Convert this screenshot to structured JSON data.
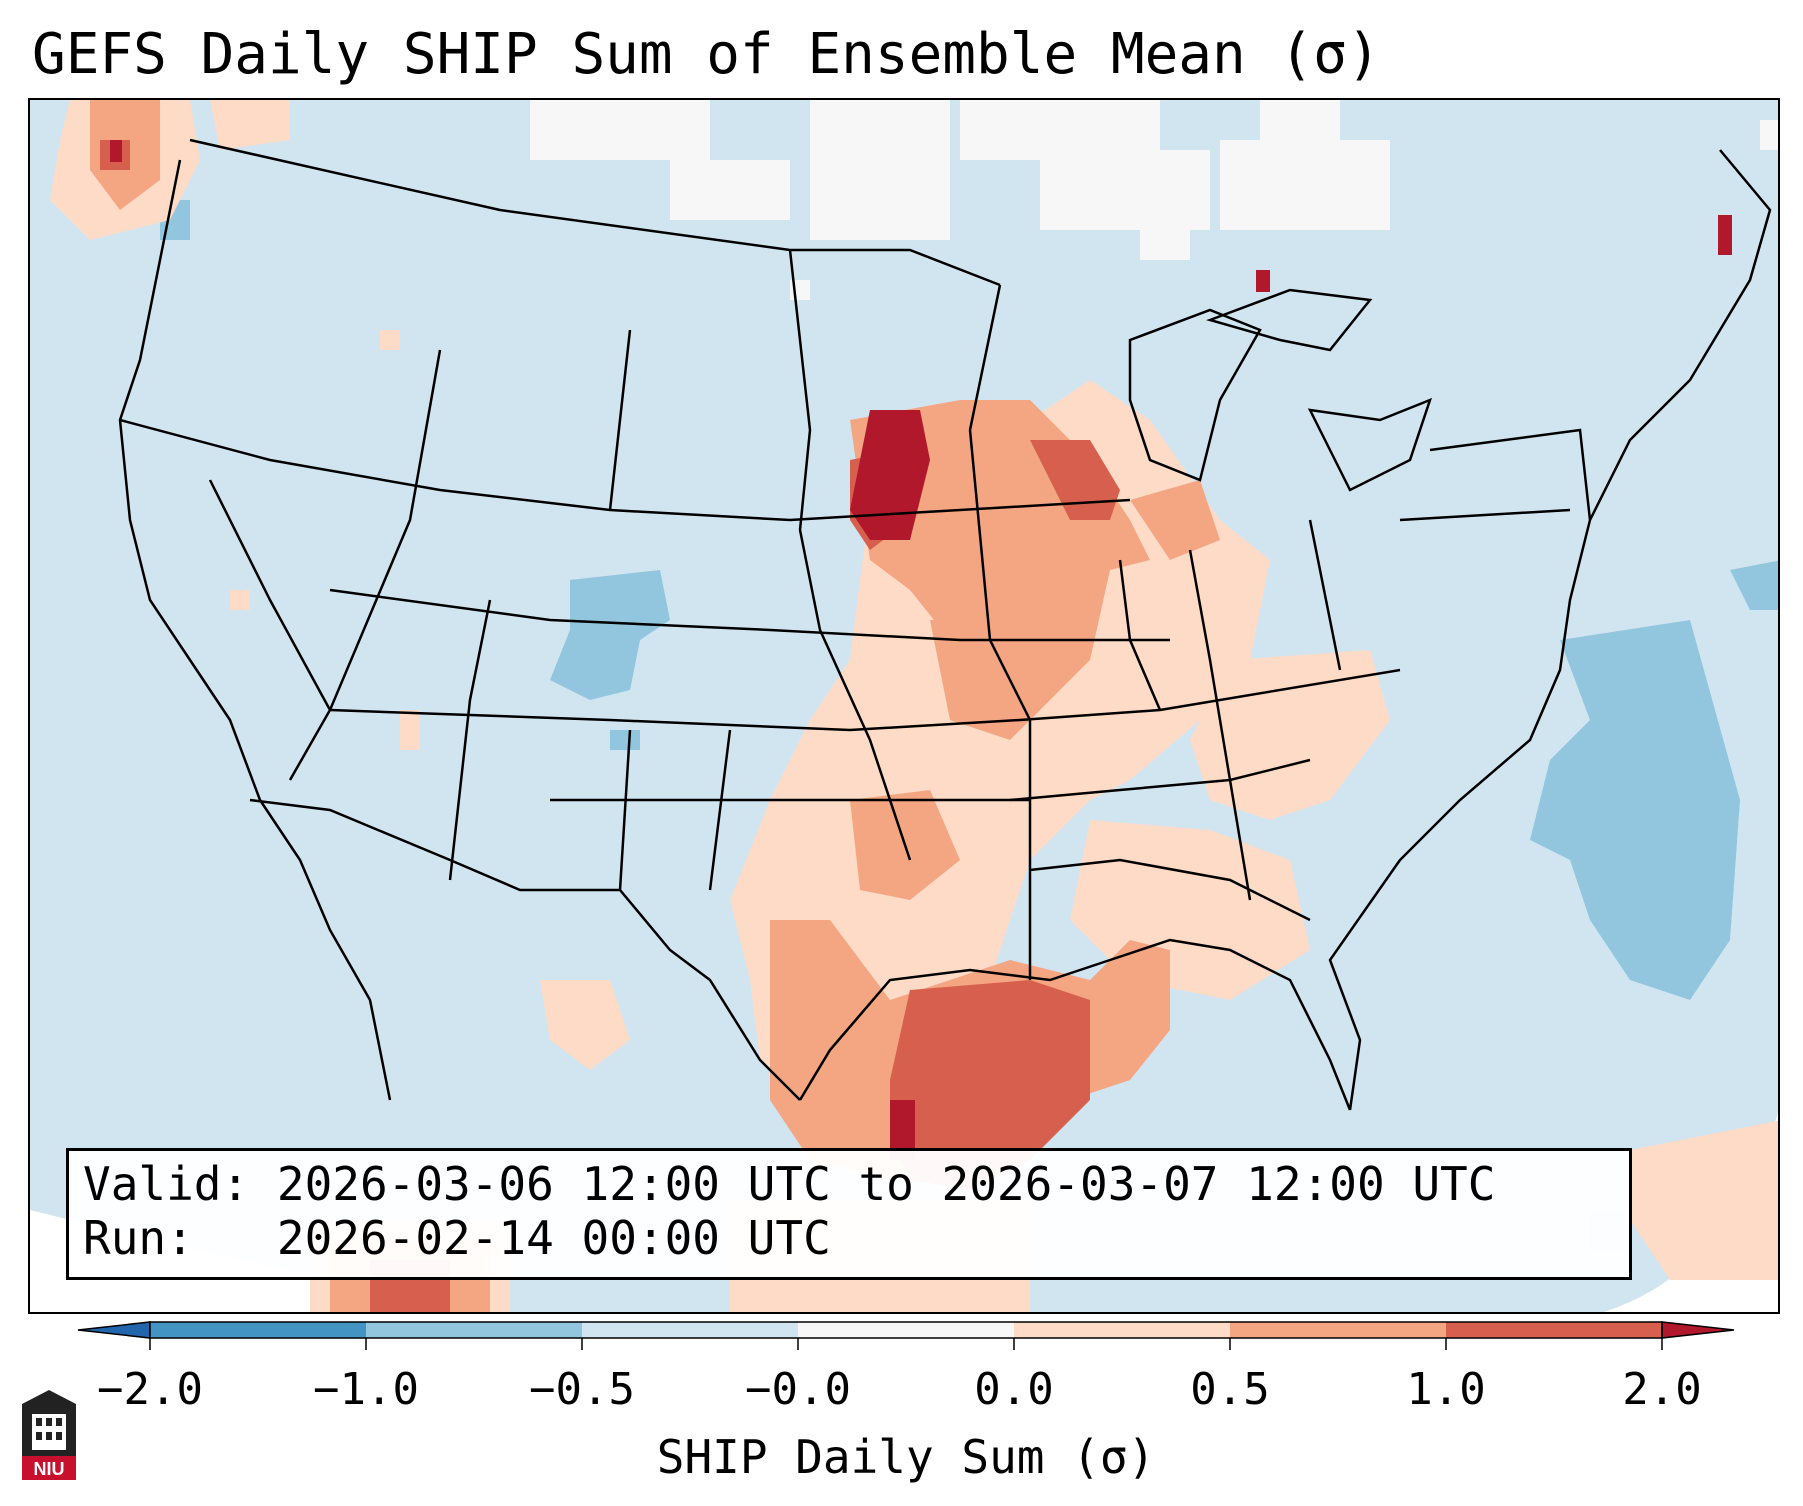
{
  "title": "GEFS Daily SHIP Sum of Ensemble Mean (σ)",
  "info": {
    "valid_label": "Valid:",
    "valid_value": "2026-03-06 12:00 UTC to 2026-03-07 12:00 UTC",
    "run_label": "Run:",
    "run_value": "2026-02-14 00:00 UTC"
  },
  "colorbar": {
    "label": "SHIP Daily Sum (σ)",
    "ticks": [
      "−2.0",
      "−1.0",
      "−0.5",
      "−0.0",
      "0.0",
      "0.5",
      "1.0",
      "2.0"
    ],
    "bins": [
      {
        "range": "< -2.0",
        "color": "#2166ac"
      },
      {
        "range": "-2.0 to -1.0",
        "color": "#4393c3"
      },
      {
        "range": "-1.0 to -0.5",
        "color": "#92c5de"
      },
      {
        "range": "-0.5 to -0.0",
        "color": "#d1e5f0"
      },
      {
        "range": "-0.0 to 0.0",
        "color": "#f7f7f7"
      },
      {
        "range": "0.0 to 0.5",
        "color": "#fddbc7"
      },
      {
        "range": "0.5 to 1.0",
        "color": "#f4a582"
      },
      {
        "range": "1.0 to 2.0",
        "color": "#d6604d"
      },
      {
        "range": "> 2.0",
        "color": "#b2182b"
      }
    ]
  },
  "logo": {
    "text": "NIU",
    "icon": "university-tower-icon",
    "color": "#c8102e"
  }
}
